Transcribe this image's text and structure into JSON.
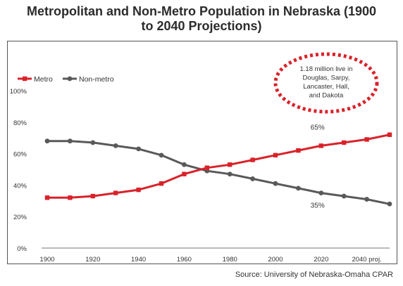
{
  "page": {
    "title_line1": "Metropolitan and Non-Metro Population in Nebraska (1900",
    "title_line2": "to 2040 Projections)",
    "source": "Source: University of Nebraska-Omaha CPAR"
  },
  "chart_data": {
    "type": "line",
    "title": "Metropolitan and Non-Metro Population in Nebraska (1900 to 2040 Projections)",
    "x": [
      1900,
      1910,
      1920,
      1930,
      1940,
      1950,
      1960,
      1970,
      1980,
      1990,
      2000,
      2010,
      2020,
      2030,
      2040,
      2050
    ],
    "x_ticks": [
      1900,
      1920,
      1940,
      1960,
      1980,
      2000,
      2020,
      2040
    ],
    "x_tick_labels": [
      "1900",
      "1920",
      "1940",
      "1960",
      "1980",
      "2000",
      "2020",
      "2040 proj."
    ],
    "y_ticks": [
      0,
      20,
      40,
      60,
      80,
      100
    ],
    "y_tick_labels": [
      "0%",
      "20%",
      "40%",
      "60%",
      "80%",
      "100%"
    ],
    "ylim": [
      0,
      100
    ],
    "grid": false,
    "legend_position": "top-left",
    "series": [
      {
        "name": "Metro",
        "color": "#d9222a",
        "marker": "square",
        "values": [
          32,
          32,
          33,
          35,
          37,
          41,
          47,
          51,
          53,
          56,
          59,
          62,
          65,
          67,
          69,
          72
        ]
      },
      {
        "name": "Non-metro",
        "color": "#595959",
        "marker": "circle",
        "values": [
          68,
          68,
          67,
          65,
          63,
          59,
          53,
          49,
          47,
          44,
          41,
          38,
          35,
          33,
          31,
          28
        ]
      }
    ],
    "annotations": [
      {
        "text": "65%",
        "series": "Metro",
        "at_x": 2020
      },
      {
        "text": "35%",
        "series": "Non-metro",
        "at_x": 2020
      }
    ],
    "callout": {
      "lines": [
        "1.18 million live in",
        "Douglas, Sarpy,",
        "Lancaster, Hall,",
        "and Dakota"
      ],
      "border_color": "#d9222a"
    }
  }
}
